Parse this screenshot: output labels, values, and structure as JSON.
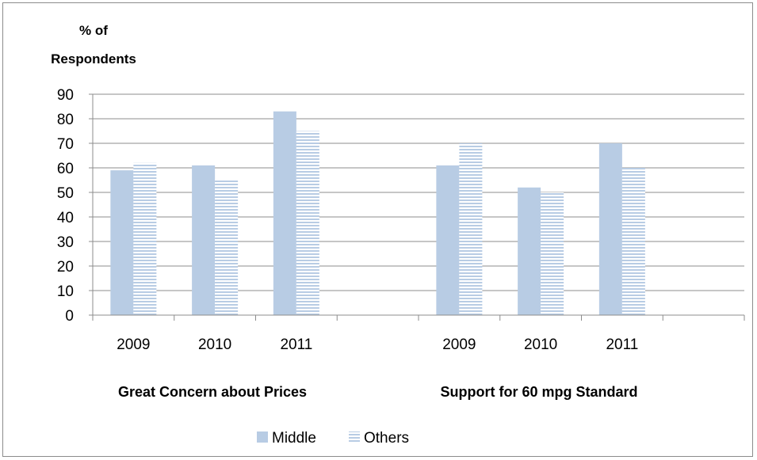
{
  "chart_data": {
    "type": "bar",
    "ylabel_line1": "% of",
    "ylabel_line2": "Respondents",
    "ylim": [
      0,
      90
    ],
    "yticks": [
      0,
      10,
      20,
      30,
      40,
      50,
      60,
      70,
      80,
      90
    ],
    "grid": true,
    "groups": [
      {
        "label": "Great Concern about Prices",
        "categories": [
          "2009",
          "2010",
          "2011"
        ]
      },
      {
        "label": "Support for 60 mpg Standard",
        "categories": [
          "2009",
          "2010",
          "2011"
        ]
      }
    ],
    "series": [
      {
        "name": "Middle",
        "color": "#b8cce4",
        "pattern": "solid",
        "values": [
          [
            59,
            61,
            83
          ],
          [
            61,
            52,
            70
          ]
        ]
      },
      {
        "name": "Others",
        "color": "#b8cce4",
        "pattern": "horizontal-stripes",
        "values": [
          [
            62,
            55,
            75
          ],
          [
            70,
            50,
            60
          ]
        ]
      }
    ],
    "legend_position": "bottom"
  }
}
